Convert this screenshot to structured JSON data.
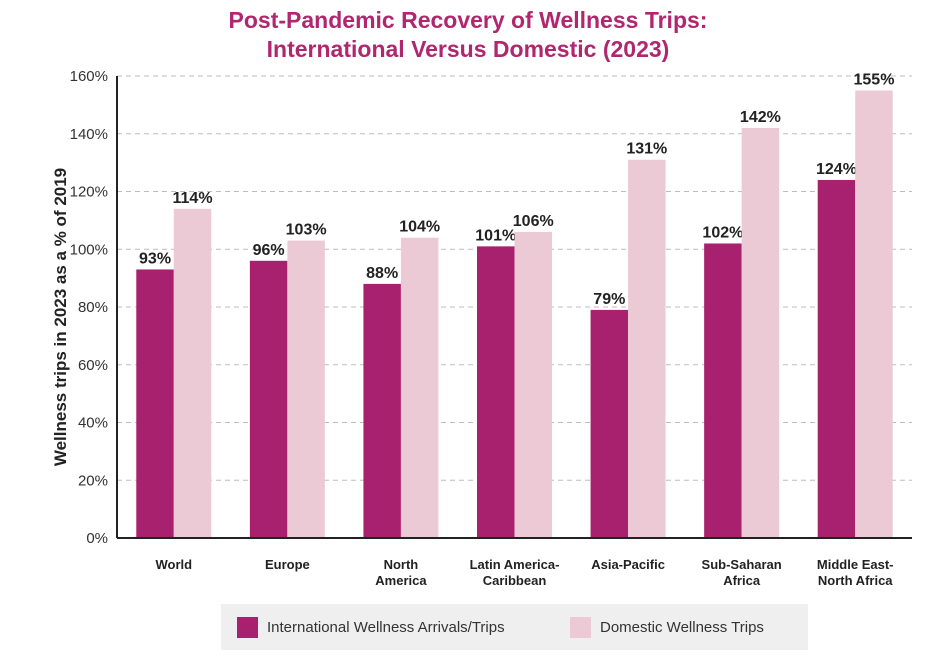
{
  "title": {
    "line1": "Post-Pandemic Recovery of Wellness Trips:",
    "line2": "International Versus Domestic (2023)"
  },
  "colors": {
    "international": "#a8216e",
    "domestic": "#ebcad6",
    "title": "#b0276f",
    "grid": "#bdbdbd",
    "axis": "#222222",
    "legend_bg": "#efefef"
  },
  "legend": {
    "international_label": "International Wellness Arrivals/Trips",
    "domestic_label": "Domestic Wellness Trips"
  },
  "chart_data": {
    "type": "bar",
    "title": "Post-Pandemic Recovery of Wellness Trips: International Versus Domestic (2023)",
    "ylabel": "Wellness trips in 2023 as a % of 2019",
    "xlabel": "",
    "ylim": [
      0,
      160
    ],
    "yticks": [
      0,
      20,
      40,
      60,
      80,
      100,
      120,
      140,
      160
    ],
    "ytick_labels": [
      "0%",
      "20%",
      "40%",
      "60%",
      "80%",
      "100%",
      "120%",
      "140%",
      "160%"
    ],
    "grid": true,
    "legend_position": "bottom",
    "categories": [
      [
        "World"
      ],
      [
        "Europe"
      ],
      [
        "North",
        "America"
      ],
      [
        "Latin America-",
        "Caribbean"
      ],
      [
        "Asia-Pacific"
      ],
      [
        "Sub-Saharan",
        "Africa"
      ],
      [
        "Middle East-",
        "North Africa"
      ]
    ],
    "series": [
      {
        "name": "International Wellness Arrivals/Trips",
        "values": [
          93,
          96,
          88,
          101,
          79,
          102,
          124
        ],
        "labels": [
          "93%",
          "96%",
          "88%",
          "101%",
          "79%",
          "102%",
          "124%"
        ]
      },
      {
        "name": "Domestic Wellness Trips",
        "values": [
          114,
          103,
          104,
          106,
          131,
          142,
          155
        ],
        "labels": [
          "114%",
          "103%",
          "104%",
          "106%",
          "131%",
          "142%",
          "155%"
        ]
      }
    ]
  }
}
